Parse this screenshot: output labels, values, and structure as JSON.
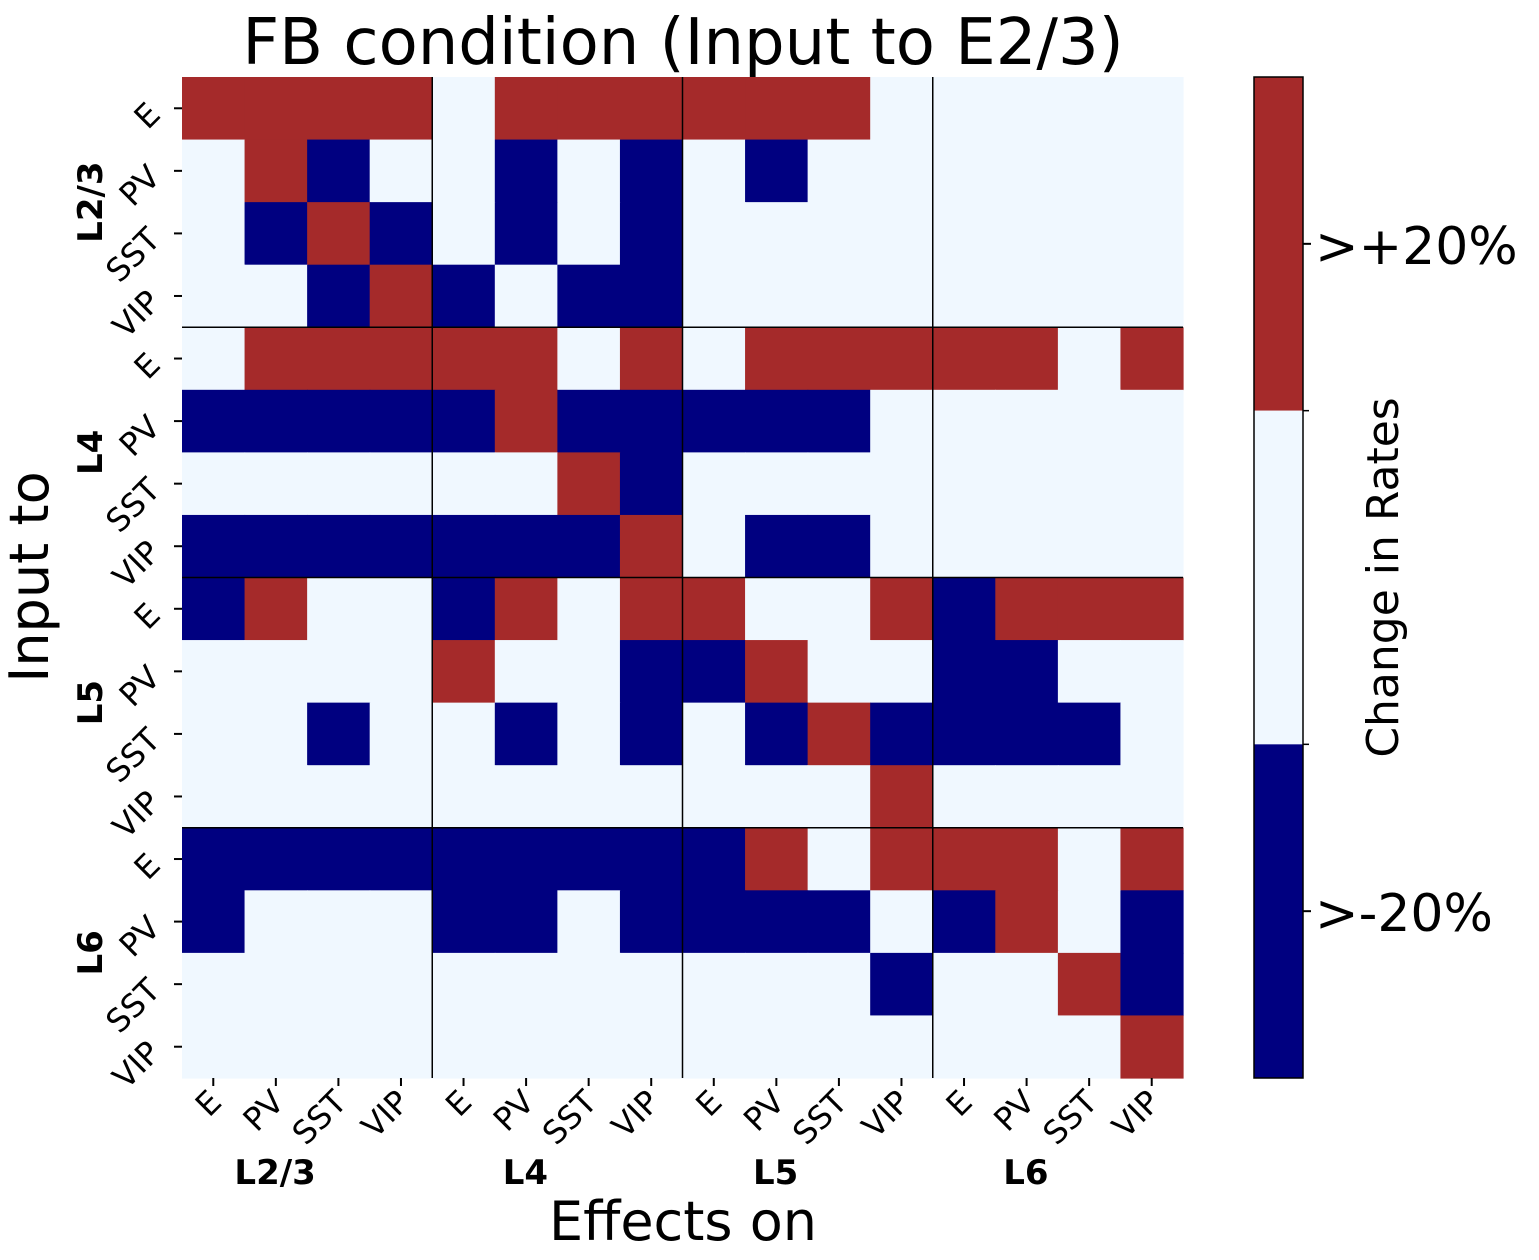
{
  "chart_data": {
    "type": "heatmap",
    "title": "FB condition (Input to E2/3)",
    "xlabel": "Effects on",
    "ylabel": "Input to",
    "cell_types": [
      "E",
      "PV",
      "SST",
      "VIP"
    ],
    "layers": [
      "L2/3",
      "L4",
      "L5",
      "L6"
    ],
    "value_encoding": {
      "-1": "decrease",
      "0": "no change",
      "1": "increase"
    },
    "colors": {
      "-1": "#000080",
      "0": "#f0f8ff",
      "1": "#a52a2a"
    },
    "grid_lines": "layer boundaries",
    "matrix": [
      [
        1,
        1,
        1,
        1,
        0,
        1,
        1,
        1,
        1,
        1,
        1,
        0,
        0,
        0,
        0,
        0
      ],
      [
        0,
        1,
        -1,
        0,
        0,
        -1,
        0,
        -1,
        0,
        -1,
        0,
        0,
        0,
        0,
        0,
        0
      ],
      [
        0,
        -1,
        1,
        -1,
        0,
        -1,
        0,
        -1,
        0,
        0,
        0,
        0,
        0,
        0,
        0,
        0
      ],
      [
        0,
        0,
        -1,
        1,
        -1,
        0,
        -1,
        -1,
        0,
        0,
        0,
        0,
        0,
        0,
        0,
        0
      ],
      [
        0,
        1,
        1,
        1,
        1,
        1,
        0,
        1,
        0,
        1,
        1,
        1,
        1,
        1,
        0,
        1
      ],
      [
        -1,
        -1,
        -1,
        -1,
        -1,
        1,
        -1,
        -1,
        -1,
        -1,
        -1,
        0,
        0,
        0,
        0,
        0
      ],
      [
        0,
        0,
        0,
        0,
        0,
        0,
        1,
        -1,
        0,
        0,
        0,
        0,
        0,
        0,
        0,
        0
      ],
      [
        -1,
        -1,
        -1,
        -1,
        -1,
        -1,
        -1,
        1,
        0,
        -1,
        -1,
        0,
        0,
        0,
        0,
        0
      ],
      [
        -1,
        1,
        0,
        0,
        -1,
        1,
        0,
        1,
        1,
        0,
        0,
        1,
        -1,
        1,
        1,
        1
      ],
      [
        0,
        0,
        0,
        0,
        1,
        0,
        0,
        -1,
        -1,
        1,
        0,
        0,
        -1,
        -1,
        0,
        0
      ],
      [
        0,
        0,
        -1,
        0,
        0,
        -1,
        0,
        -1,
        0,
        -1,
        1,
        -1,
        -1,
        -1,
        -1,
        0
      ],
      [
        0,
        0,
        0,
        0,
        0,
        0,
        0,
        0,
        0,
        0,
        0,
        1,
        0,
        0,
        0,
        0
      ],
      [
        -1,
        -1,
        -1,
        -1,
        -1,
        -1,
        -1,
        -1,
        -1,
        1,
        0,
        1,
        1,
        1,
        0,
        1
      ],
      [
        -1,
        0,
        0,
        0,
        -1,
        -1,
        0,
        -1,
        -1,
        -1,
        -1,
        0,
        -1,
        1,
        0,
        -1
      ],
      [
        0,
        0,
        0,
        0,
        0,
        0,
        0,
        0,
        0,
        0,
        0,
        -1,
        0,
        0,
        1,
        -1
      ],
      [
        0,
        0,
        0,
        0,
        0,
        0,
        0,
        0,
        0,
        0,
        0,
        0,
        0,
        0,
        0,
        1
      ]
    ],
    "colorbar": {
      "label": "Change in Rates",
      "ticks": [
        {
          "label": ">+20%",
          "value": 1
        },
        {
          "label": ">-20%",
          "value": -1
        }
      ]
    }
  }
}
